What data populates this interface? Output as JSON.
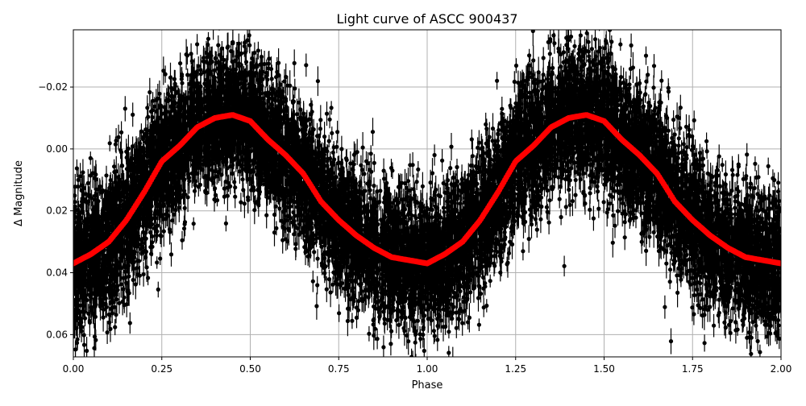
{
  "chart_data": {
    "type": "scatter",
    "title": "Light curve of ASCC 900437",
    "xlabel": "Phase",
    "ylabel": "Δ Magnitude",
    "xlim": [
      0,
      2
    ],
    "ylim": [
      0.0672,
      -0.0385
    ],
    "y_inverted": true,
    "grid": true,
    "xticks": [
      "0.00",
      "0.25",
      "0.50",
      "0.75",
      "1.00",
      "1.25",
      "1.50",
      "1.75",
      "2.00"
    ],
    "xtick_values": [
      0,
      0.25,
      0.5,
      0.75,
      1,
      1.25,
      1.5,
      1.75,
      2
    ],
    "yticks": [
      "−0.02",
      "0.00",
      "0.02",
      "0.04",
      "0.06"
    ],
    "ytick_values": [
      -0.02,
      0,
      0.02,
      0.04,
      0.06
    ],
    "colors": {
      "points": "#000000",
      "binned_curve": "#ff0000",
      "grid": "#b0b0b0"
    },
    "binned_curve": {
      "x": [
        0,
        0.05,
        0.1,
        0.15,
        0.2,
        0.25,
        0.3,
        0.35,
        0.4,
        0.45,
        0.5,
        0.55,
        0.6,
        0.65,
        0.7,
        0.75,
        0.8,
        0.85,
        0.9,
        0.95,
        1.0,
        1.05,
        1.1,
        1.15,
        1.2,
        1.25,
        1.3,
        1.35,
        1.4,
        1.45,
        1.5,
        1.55,
        1.6,
        1.65,
        1.7,
        1.75,
        1.8,
        1.85,
        1.9,
        1.95,
        2.0
      ],
      "y": [
        0.037,
        0.034,
        0.03,
        0.023,
        0.014,
        0.004,
        -0.001,
        -0.007,
        -0.01,
        -0.011,
        -0.009,
        -0.003,
        0.002,
        0.008,
        0.017,
        0.023,
        0.028,
        0.032,
        0.035,
        0.036,
        0.037,
        0.034,
        0.03,
        0.023,
        0.014,
        0.004,
        -0.001,
        -0.007,
        -0.01,
        -0.011,
        -0.009,
        -0.003,
        0.002,
        0.008,
        0.017,
        0.023,
        0.028,
        0.032,
        0.035,
        0.036,
        0.037
      ]
    }
  }
}
